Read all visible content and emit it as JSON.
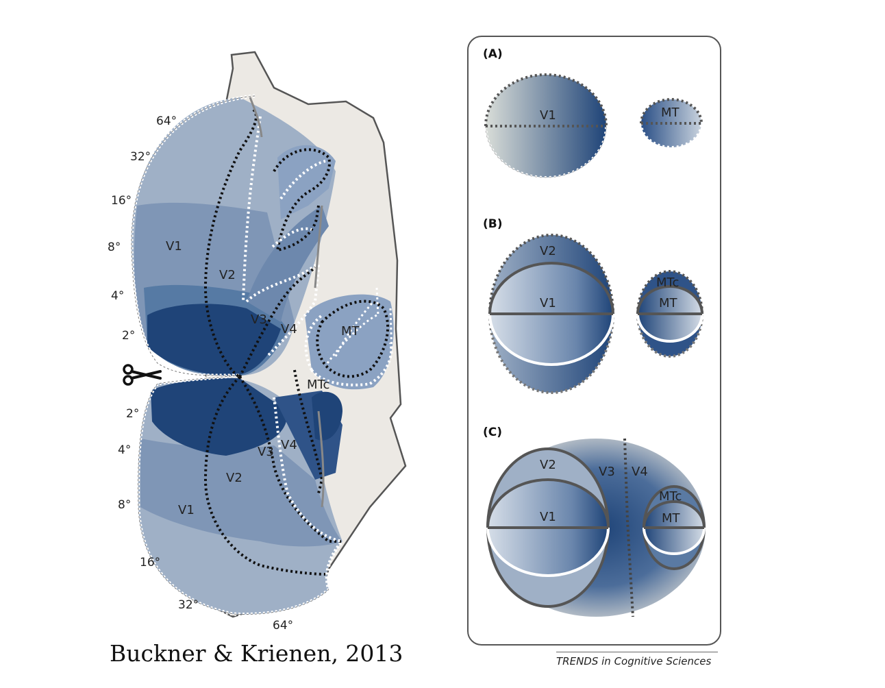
{
  "flatmap": {
    "region_labels": [
      "V1",
      "V2",
      "V3",
      "V4",
      "MT",
      "MTc",
      "V4",
      "V3",
      "V2",
      "V1"
    ],
    "eccentricity_upper": [
      "64°",
      "32°",
      "16°",
      "8°",
      "4°",
      "2°"
    ],
    "eccentricity_lower": [
      "2°",
      "4°",
      "8°",
      "16°",
      "32°",
      "64°"
    ],
    "cut_icon": "scissors-icon"
  },
  "panels": {
    "a": {
      "label": "(A)",
      "v1": "V1",
      "mt": "MT"
    },
    "b": {
      "label": "(B)",
      "v2": "V2",
      "v1": "V1",
      "mtc": "MTc",
      "mt": "MT"
    },
    "c": {
      "label": "(C)",
      "v2": "V2",
      "v1": "V1",
      "v3": "V3",
      "v4": "V4",
      "mtc": "MTc",
      "mt": "MT"
    }
  },
  "credit": "Buckner & Krienen, 2013",
  "journal": "TRENDS in Cognitive Sciences",
  "colors": {
    "deep_blue": "#1f4478",
    "light_blue": "#c9d3de",
    "cortex_gray": "#ece9e4",
    "outline": "#555555"
  }
}
